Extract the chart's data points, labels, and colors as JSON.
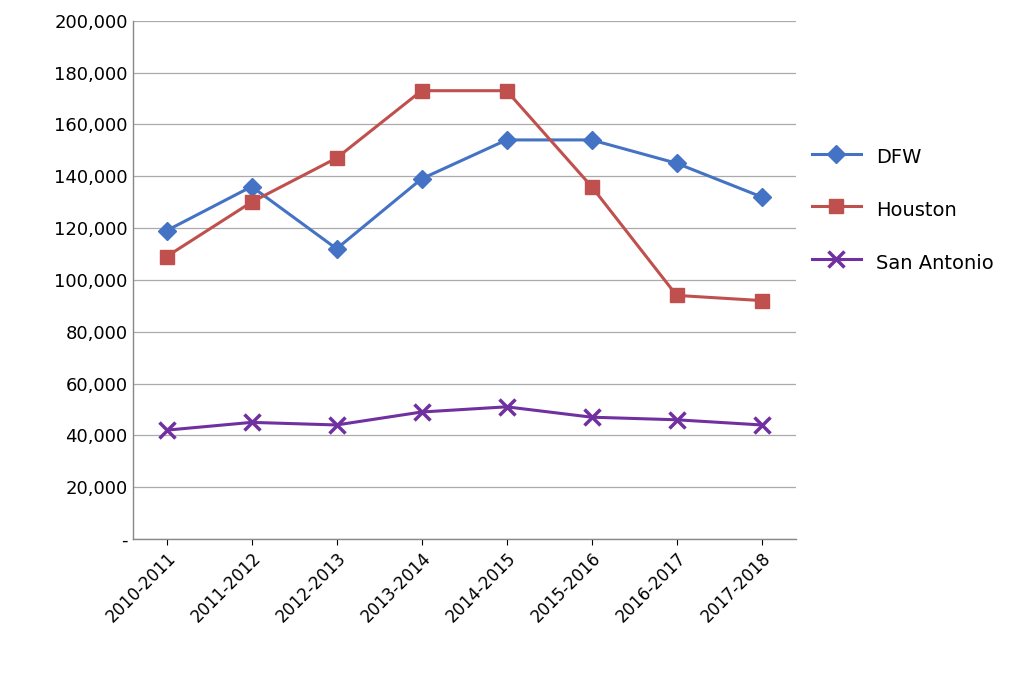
{
  "categories": [
    "2010-2011",
    "2011-2012",
    "2012-2013",
    "2013-2014",
    "2014-2015",
    "2015-2016",
    "2016-2017",
    "2017-2018"
  ],
  "DFW": [
    119000,
    136000,
    112000,
    139000,
    154000,
    154000,
    145000,
    132000
  ],
  "Houston": [
    109000,
    130000,
    147000,
    173000,
    173000,
    136000,
    94000,
    92000
  ],
  "San Antonio": [
    42000,
    45000,
    44000,
    49000,
    51000,
    47000,
    46000,
    44000
  ],
  "DFW_color": "#4472C4",
  "Houston_color": "#C0504D",
  "San Antonio_color": "#7030A0",
  "background_color": "#FFFFFF",
  "ylim": [
    0,
    200000
  ],
  "yticks": [
    0,
    20000,
    40000,
    60000,
    80000,
    100000,
    120000,
    140000,
    160000,
    180000,
    200000
  ],
  "legend_labels": [
    "DFW",
    "Houston",
    "San Antonio"
  ],
  "marker_DFW": "D",
  "marker_Houston": "s",
  "marker_San Antonio": "x",
  "linewidth": 2.2,
  "markersize_DFW": 9,
  "markersize_Houston": 10,
  "markersize_SanAntonio": 11,
  "ytick_fontsize": 13,
  "xtick_fontsize": 12,
  "legend_fontsize": 14,
  "grid_color": "#AAAAAA",
  "spine_color": "#888888"
}
